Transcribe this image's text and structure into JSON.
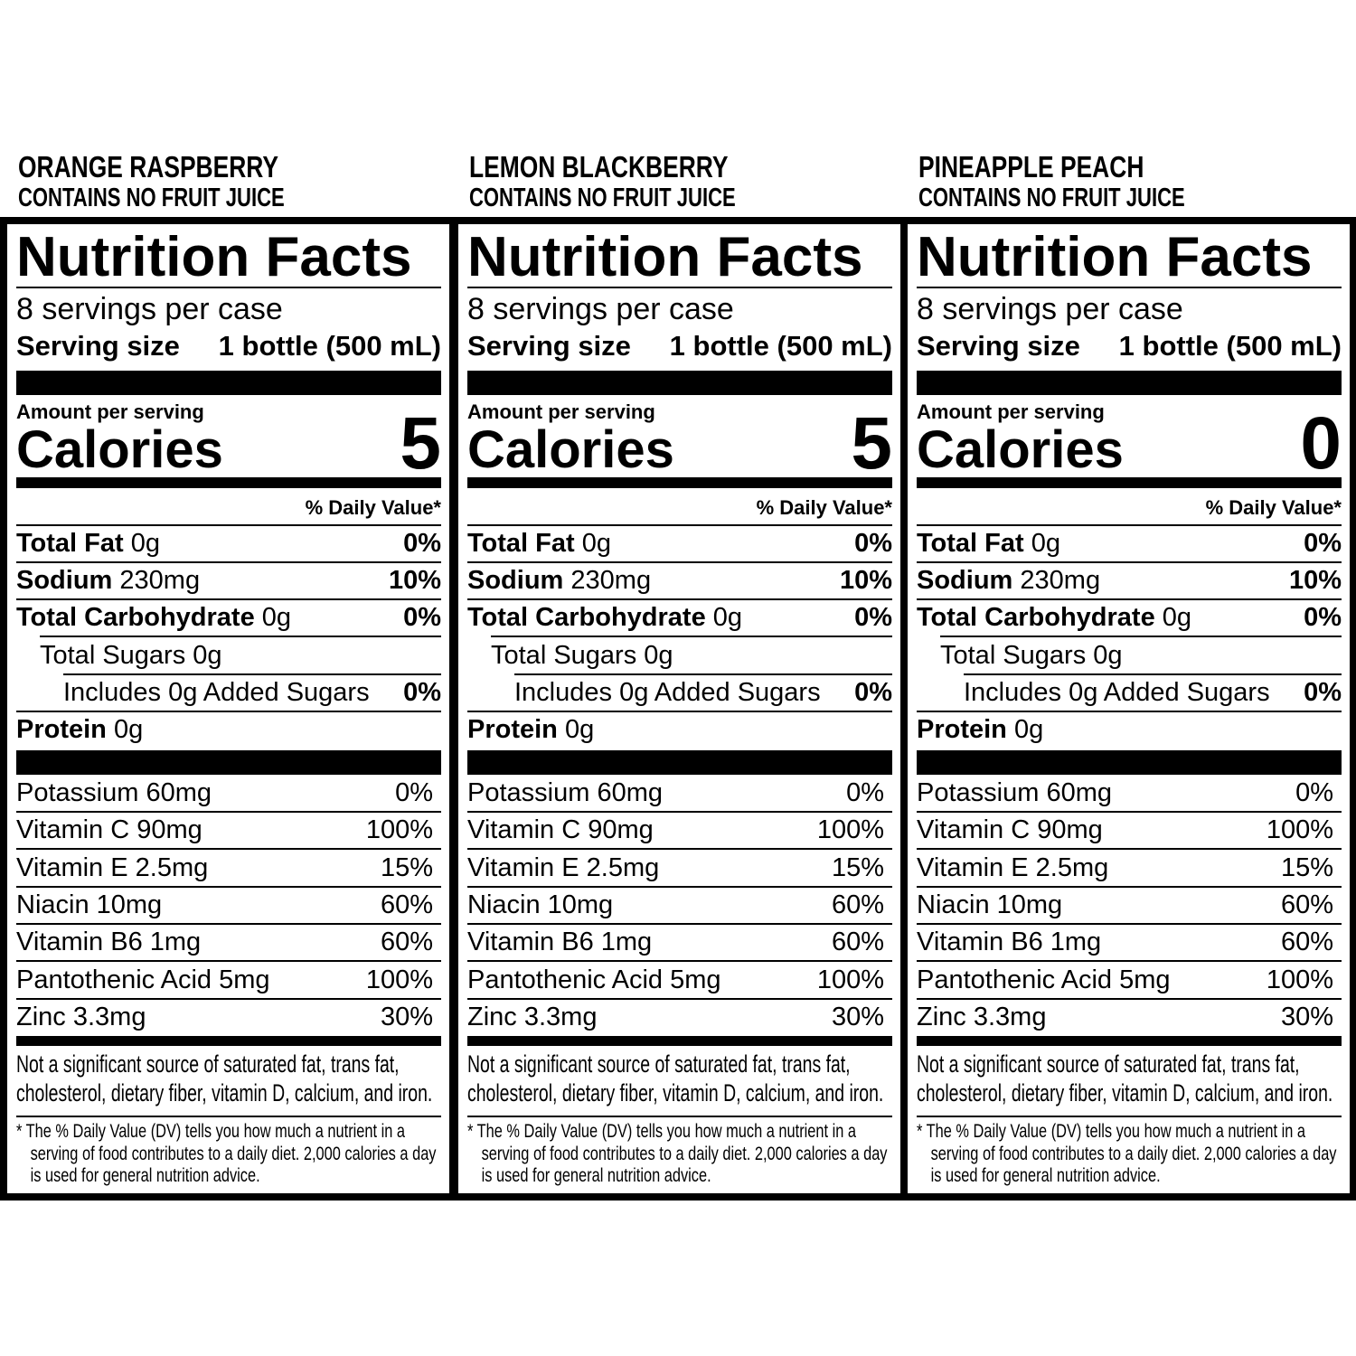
{
  "panels": [
    {
      "flavor": "ORANGE RASPBERRY",
      "juice_note": "CONTAINS NO FRUIT JUICE",
      "title": "Nutrition Facts",
      "servings": "8 servings per case",
      "serving_size_label": "Serving size",
      "serving_size_value": "1 bottle (500 mL)",
      "amount_label": "Amount per serving",
      "calories_label": "Calories",
      "calories_value": "5",
      "dv_header": "% Daily Value*",
      "nutrients": [
        {
          "name": "Total Fat",
          "amount": "0g",
          "dv": "0%"
        },
        {
          "name": "Sodium",
          "amount": "230mg",
          "dv": "10%"
        },
        {
          "name": "Total Carbohydrate",
          "amount": "0g",
          "dv": "0%"
        },
        {
          "name": "Total Sugars 0g"
        },
        {
          "name": "Includes 0g Added Sugars",
          "dv": "0%"
        },
        {
          "name": "Protein",
          "amount": "0g"
        }
      ],
      "vitamins": [
        {
          "name": "Potassium 60mg",
          "dv": "0%"
        },
        {
          "name": "Vitamin C 90mg",
          "dv": "100%"
        },
        {
          "name": "Vitamin E 2.5mg",
          "dv": "15%"
        },
        {
          "name": "Niacin 10mg",
          "dv": "60%"
        },
        {
          "name": "Vitamin B6 1mg",
          "dv": "60%"
        },
        {
          "name": "Pantothenic Acid 5mg",
          "dv": "100%"
        },
        {
          "name": "Zinc 3.3mg",
          "dv": "30%"
        }
      ],
      "note": "Not a significant source of saturated fat, trans fat, cholesterol, dietary fiber, vitamin D, calcium, and iron.",
      "footnote": "* The % Daily Value (DV) tells you how much a nutrient in a serving of food contributes to a daily diet. 2,000 calories a day is used for general nutrition advice."
    },
    {
      "flavor": "LEMON BLACKBERRY",
      "juice_note": "CONTAINS NO FRUIT JUICE",
      "title": "Nutrition Facts",
      "servings": "8 servings per case",
      "serving_size_label": "Serving size",
      "serving_size_value": "1 bottle (500 mL)",
      "amount_label": "Amount per serving",
      "calories_label": "Calories",
      "calories_value": "5",
      "dv_header": "% Daily Value*",
      "nutrients": [
        {
          "name": "Total Fat",
          "amount": "0g",
          "dv": "0%"
        },
        {
          "name": "Sodium",
          "amount": "230mg",
          "dv": "10%"
        },
        {
          "name": "Total Carbohydrate",
          "amount": "0g",
          "dv": "0%"
        },
        {
          "name": "Total Sugars 0g"
        },
        {
          "name": "Includes 0g Added Sugars",
          "dv": "0%"
        },
        {
          "name": "Protein",
          "amount": "0g"
        }
      ],
      "vitamins": [
        {
          "name": "Potassium 60mg",
          "dv": "0%"
        },
        {
          "name": "Vitamin C 90mg",
          "dv": "100%"
        },
        {
          "name": "Vitamin E 2.5mg",
          "dv": "15%"
        },
        {
          "name": "Niacin 10mg",
          "dv": "60%"
        },
        {
          "name": "Vitamin B6 1mg",
          "dv": "60%"
        },
        {
          "name": "Pantothenic Acid 5mg",
          "dv": "100%"
        },
        {
          "name": "Zinc 3.3mg",
          "dv": "30%"
        }
      ],
      "note": "Not a significant source of saturated fat, trans fat, cholesterol, dietary fiber, vitamin D, calcium, and iron.",
      "footnote": "* The % Daily Value (DV) tells you how much a nutrient in a serving of food contributes to a daily diet. 2,000 calories a day is used for general nutrition advice."
    },
    {
      "flavor": "PINEAPPLE PEACH",
      "juice_note": "CONTAINS NO FRUIT JUICE",
      "title": "Nutrition Facts",
      "servings": "8 servings per case",
      "serving_size_label": "Serving size",
      "serving_size_value": "1 bottle (500 mL)",
      "amount_label": "Amount per serving",
      "calories_label": "Calories",
      "calories_value": "0",
      "dv_header": "% Daily Value*",
      "nutrients": [
        {
          "name": "Total Fat",
          "amount": "0g",
          "dv": "0%"
        },
        {
          "name": "Sodium",
          "amount": "230mg",
          "dv": "10%"
        },
        {
          "name": "Total Carbohydrate",
          "amount": "0g",
          "dv": "0%"
        },
        {
          "name": "Total Sugars 0g"
        },
        {
          "name": "Includes 0g Added Sugars",
          "dv": "0%"
        },
        {
          "name": "Protein",
          "amount": "0g"
        }
      ],
      "vitamins": [
        {
          "name": "Potassium 60mg",
          "dv": "0%"
        },
        {
          "name": "Vitamin C 90mg",
          "dv": "100%"
        },
        {
          "name": "Vitamin E 2.5mg",
          "dv": "15%"
        },
        {
          "name": "Niacin 10mg",
          "dv": "60%"
        },
        {
          "name": "Vitamin B6 1mg",
          "dv": "60%"
        },
        {
          "name": "Pantothenic Acid 5mg",
          "dv": "100%"
        },
        {
          "name": "Zinc 3.3mg",
          "dv": "30%"
        }
      ],
      "note": "Not a significant source of saturated fat, trans fat, cholesterol, dietary fiber, vitamin D, calcium, and iron.",
      "footnote": "* The % Daily Value (DV) tells you how much a nutrient in a serving of food contributes to a daily diet. 2,000 calories a day is used for general nutrition advice."
    }
  ]
}
